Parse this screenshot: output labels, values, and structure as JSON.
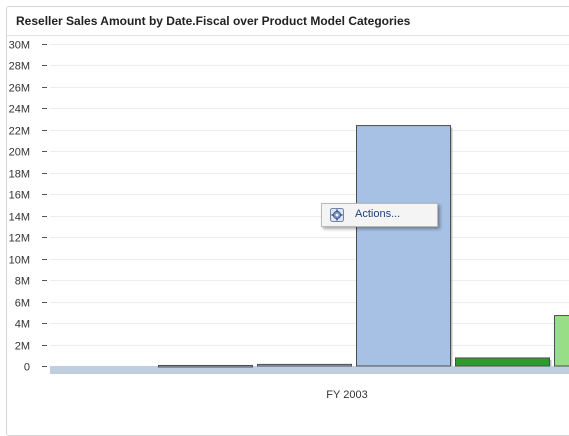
{
  "chart_data": {
    "type": "bar",
    "title": "Reseller Sales Amount by Date.Fiscal over Product Model Categories",
    "categories": [
      "FY 2003"
    ],
    "series": [
      {
        "values": [
          0.05
        ],
        "color": "#a6c1e3"
      },
      {
        "values": [
          0.15
        ],
        "color": "#a6c1e3"
      },
      {
        "values": [
          22.4
        ],
        "color": "#a6c1e3"
      },
      {
        "values": [
          0.75
        ],
        "color": "#2e9b2e"
      },
      {
        "values": [
          4.7
        ],
        "color": "#98de86"
      }
    ],
    "ylim": [
      0,
      30
    ],
    "yticks": [
      "0",
      "2M",
      "4M",
      "6M",
      "8M",
      "10M",
      "12M",
      "14M",
      "16M",
      "18M",
      "20M",
      "22M",
      "24M",
      "26M",
      "28M",
      "30M"
    ],
    "grid": true,
    "xlabel": "",
    "ylabel": ""
  },
  "context_menu": {
    "item_label": "Actions...",
    "icon": "gear-icon"
  }
}
